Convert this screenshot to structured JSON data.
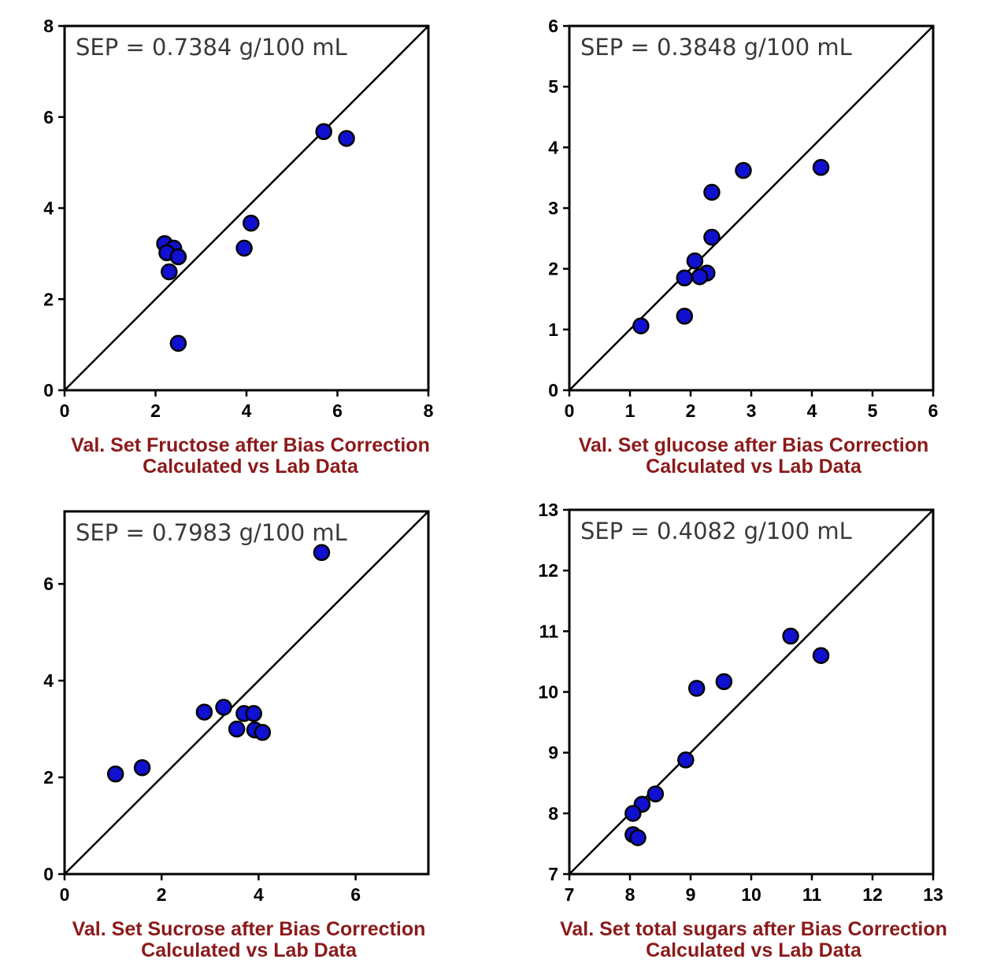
{
  "chart_data": [
    {
      "type": "scatter",
      "annotation": "SEP = 0.7384 g/100 mL",
      "xlabel_lines": [
        "Val. Set Fructose after Bias Correction",
        "Calculated vs Lab Data"
      ],
      "xlim": [
        0,
        8
      ],
      "ylim": [
        0,
        8
      ],
      "xticks": [
        0,
        2,
        4,
        6,
        8
      ],
      "yticks": [
        0,
        2,
        4,
        6,
        8
      ],
      "identity_line": true,
      "points": [
        {
          "x": 5.7,
          "y": 5.68
        },
        {
          "x": 6.2,
          "y": 5.53
        },
        {
          "x": 4.1,
          "y": 3.67
        },
        {
          "x": 3.95,
          "y": 3.12
        },
        {
          "x": 2.2,
          "y": 3.22
        },
        {
          "x": 2.4,
          "y": 3.12
        },
        {
          "x": 2.25,
          "y": 3.02
        },
        {
          "x": 2.5,
          "y": 2.93
        },
        {
          "x": 2.3,
          "y": 2.6
        },
        {
          "x": 2.5,
          "y": 1.03
        }
      ]
    },
    {
      "type": "scatter",
      "annotation": "SEP = 0.3848 g/100 mL",
      "xlabel_lines": [
        "Val. Set glucose after Bias Correction",
        "Calculated vs Lab Data"
      ],
      "xlim": [
        0,
        6
      ],
      "ylim": [
        0,
        6
      ],
      "xticks": [
        0,
        1,
        2,
        3,
        4,
        5,
        6
      ],
      "yticks": [
        0,
        1,
        2,
        3,
        4,
        5,
        6
      ],
      "identity_line": true,
      "points": [
        {
          "x": 4.15,
          "y": 3.67
        },
        {
          "x": 2.87,
          "y": 3.62
        },
        {
          "x": 2.35,
          "y": 3.26
        },
        {
          "x": 2.35,
          "y": 2.52
        },
        {
          "x": 2.07,
          "y": 2.13
        },
        {
          "x": 2.27,
          "y": 1.93
        },
        {
          "x": 2.15,
          "y": 1.87
        },
        {
          "x": 1.9,
          "y": 1.85
        },
        {
          "x": 1.9,
          "y": 1.22
        },
        {
          "x": 1.18,
          "y": 1.06
        }
      ]
    },
    {
      "type": "scatter",
      "annotation": "SEP = 0.7983 g/100 mL",
      "xlabel_lines": [
        "Val. Set Sucrose after Bias Correction",
        "Calculated vs Lab Data"
      ],
      "xlim": [
        0,
        7.5
      ],
      "ylim": [
        0,
        7.5
      ],
      "xticks": [
        0,
        2,
        4,
        6
      ],
      "yticks": [
        0,
        2,
        4,
        6
      ],
      "identity_line": true,
      "points": [
        {
          "x": 5.3,
          "y": 6.65
        },
        {
          "x": 3.28,
          "y": 3.45
        },
        {
          "x": 2.88,
          "y": 3.35
        },
        {
          "x": 3.7,
          "y": 3.32
        },
        {
          "x": 3.9,
          "y": 3.32
        },
        {
          "x": 3.55,
          "y": 3.0
        },
        {
          "x": 3.92,
          "y": 2.98
        },
        {
          "x": 4.08,
          "y": 2.93
        },
        {
          "x": 1.6,
          "y": 2.2
        },
        {
          "x": 1.05,
          "y": 2.07
        }
      ]
    },
    {
      "type": "scatter",
      "annotation": "SEP = 0.4082 g/100 mL",
      "xlabel_lines": [
        "Val. Set total sugars after Bias Correction",
        "Calculated vs Lab Data"
      ],
      "xlim": [
        7,
        13
      ],
      "ylim": [
        7,
        13
      ],
      "xticks": [
        7,
        8,
        9,
        10,
        11,
        12,
        13
      ],
      "yticks": [
        7,
        8,
        9,
        10,
        11,
        12,
        13
      ],
      "identity_line": true,
      "points": [
        {
          "x": 10.65,
          "y": 10.92
        },
        {
          "x": 11.15,
          "y": 10.6
        },
        {
          "x": 9.55,
          "y": 10.17
        },
        {
          "x": 9.1,
          "y": 10.06
        },
        {
          "x": 8.92,
          "y": 8.88
        },
        {
          "x": 8.42,
          "y": 8.32
        },
        {
          "x": 8.2,
          "y": 8.15
        },
        {
          "x": 8.05,
          "y": 8.0
        },
        {
          "x": 8.05,
          "y": 7.65
        },
        {
          "x": 8.13,
          "y": 7.6
        }
      ]
    }
  ],
  "colors": {
    "marker_fill": "#1010d0",
    "marker_stroke": "#000000",
    "axis": "#000000",
    "xlabel": "#8b1a1a",
    "annotation": "#3a3a3a"
  }
}
